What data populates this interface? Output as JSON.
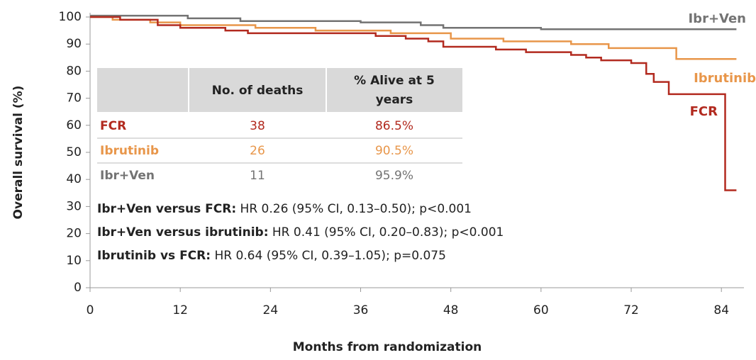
{
  "chart_data": {
    "type": "line",
    "step": true,
    "xlabel": "Months from randomization",
    "ylabel": "Overall survival (%)",
    "xlim": [
      0,
      87
    ],
    "ylim": [
      0,
      100
    ],
    "xticks": [
      0,
      12,
      24,
      36,
      48,
      60,
      72,
      84
    ],
    "yticks": [
      0,
      10,
      20,
      30,
      40,
      50,
      60,
      70,
      80,
      90,
      100
    ],
    "series": [
      {
        "name": "FCR",
        "color": "#b22a1f",
        "x": [
          0,
          4,
          9,
          12,
          18,
          21,
          38,
          42,
          45,
          47,
          54,
          58,
          64,
          66,
          68,
          72,
          74,
          75,
          77,
          84.5,
          86
        ],
        "values": [
          100,
          99,
          97,
          96,
          95,
          94,
          93,
          92,
          91,
          89,
          88,
          87,
          86,
          85,
          84,
          83,
          79,
          76,
          71.5,
          36,
          36
        ]
      },
      {
        "name": "Ibrutinib",
        "color": "#e8964a",
        "x": [
          0,
          3,
          8,
          12,
          22,
          30,
          40,
          48,
          55,
          64,
          69,
          78,
          86
        ],
        "values": [
          100,
          99,
          98,
          97,
          96,
          95,
          94,
          92,
          91,
          90,
          88.5,
          84.5,
          84.5
        ]
      },
      {
        "name": "Ibr+Ven",
        "color": "#737373",
        "x": [
          0,
          13,
          20,
          36,
          44,
          47,
          60,
          86
        ],
        "values": [
          100.5,
          99.5,
          98.5,
          98,
          97,
          96,
          95.5,
          95.5
        ]
      }
    ],
    "table": {
      "headers": [
        "No. of deaths",
        "% Alive at 5 years"
      ],
      "rows": [
        [
          "FCR",
          "38",
          "86.5%"
        ],
        [
          "Ibrutinib",
          "26",
          "90.5%"
        ],
        [
          "Ibr+Ven",
          "11",
          "95.9%"
        ]
      ]
    },
    "annotations": [
      {
        "bold": "Ibr+Ven versus FCR:",
        "text": " HR 0.26 (95% CI, 0.13–0.50); p<0.001"
      },
      {
        "bold": "Ibr+Ven versus ibrutinib:",
        "text": " HR 0.41 (95% CI, 0.20–0.83); p<0.001"
      },
      {
        "bold": "Ibrutinib vs FCR:",
        "text": " HR 0.64 (95% CI, 0.39–1.05); p=0.075"
      }
    ]
  }
}
